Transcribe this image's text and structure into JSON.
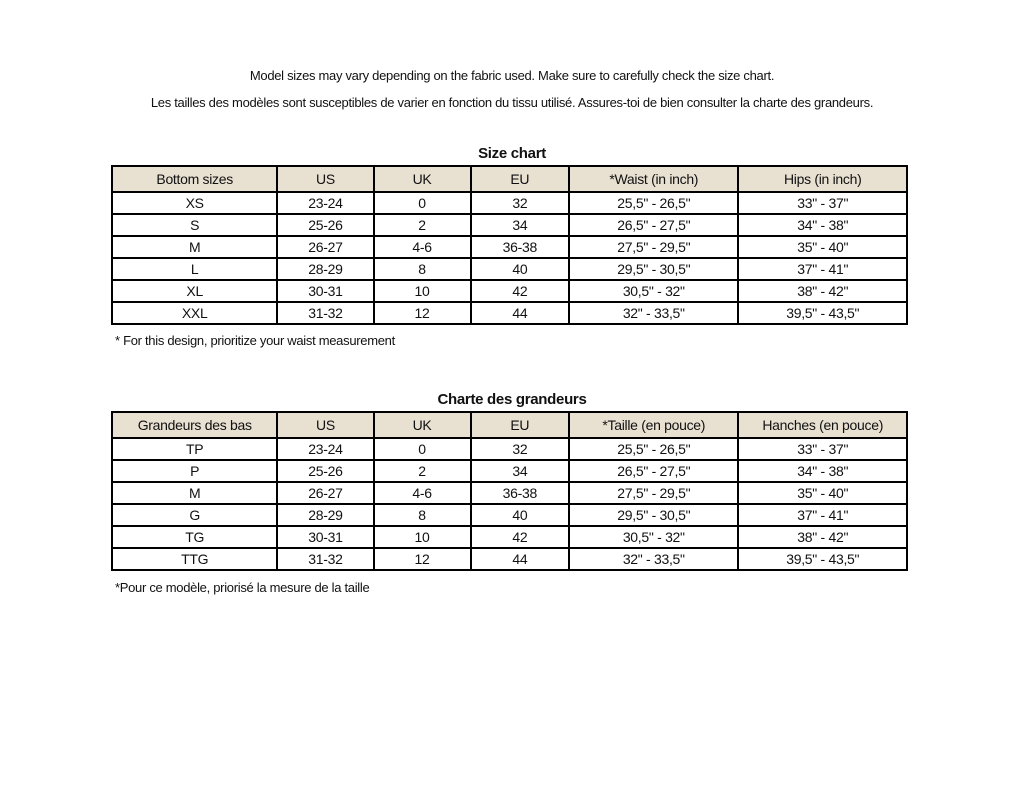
{
  "colors": {
    "header_bg": "#e8e0d1",
    "border": "#000000",
    "text": "#111111",
    "page_bg": "#ffffff"
  },
  "intro": {
    "line_en": "Model sizes may vary depending on the fabric used. Make sure to carefully check the size chart.",
    "line_fr": "Les tailles des modèles sont susceptibles de varier en fonction du tissu utilisé. Assures-toi de bien consulter la charte des grandeurs."
  },
  "size_chart_en": {
    "title": "Size chart",
    "columns": [
      "Bottom sizes",
      "US",
      "UK",
      "EU",
      "*Waist (in inch)",
      "Hips (in inch)"
    ],
    "rows": [
      [
        "XS",
        "23-24",
        "0",
        "32",
        "25,5\" - 26,5\"",
        "33\" - 37\""
      ],
      [
        "S",
        "25-26",
        "2",
        "34",
        "26,5\" - 27,5\"",
        "34\" - 38\""
      ],
      [
        "M",
        "26-27",
        "4-6",
        "36-38",
        "27,5\" - 29,5\"",
        "35\" - 40\""
      ],
      [
        "L",
        "28-29",
        "8",
        "40",
        "29,5\" - 30,5\"",
        "37\" - 41\""
      ],
      [
        "XL",
        "30-31",
        "10",
        "42",
        "30,5\" - 32\"",
        "38\" - 42\""
      ],
      [
        "XXL",
        "31-32",
        "12",
        "44",
        "32\" - 33,5\"",
        "39,5\" - 43,5\""
      ]
    ],
    "footnote": "* For this design, prioritize your waist measurement"
  },
  "size_chart_fr": {
    "title": "Charte des grandeurs",
    "columns": [
      "Grandeurs des bas",
      "US",
      "UK",
      "EU",
      "*Taille (en pouce)",
      "Hanches (en pouce)"
    ],
    "rows": [
      [
        "TP",
        "23-24",
        "0",
        "32",
        "25,5\" - 26,5\"",
        "33\" - 37\""
      ],
      [
        "P",
        "25-26",
        "2",
        "34",
        "26,5\" - 27,5\"",
        "34\" - 38\""
      ],
      [
        "M",
        "26-27",
        "4-6",
        "36-38",
        "27,5\" - 29,5\"",
        "35\" - 40\""
      ],
      [
        "G",
        "28-29",
        "8",
        "40",
        "29,5\" - 30,5\"",
        "37\" - 41\""
      ],
      [
        "TG",
        "30-31",
        "10",
        "42",
        "30,5\" - 32\"",
        "38\" - 42\""
      ],
      [
        "TTG",
        "31-32",
        "12",
        "44",
        "32\" - 33,5\"",
        "39,5\" - 43,5\""
      ]
    ],
    "footnote": "*Pour ce modèle, priorisé la mesure de la taille"
  }
}
